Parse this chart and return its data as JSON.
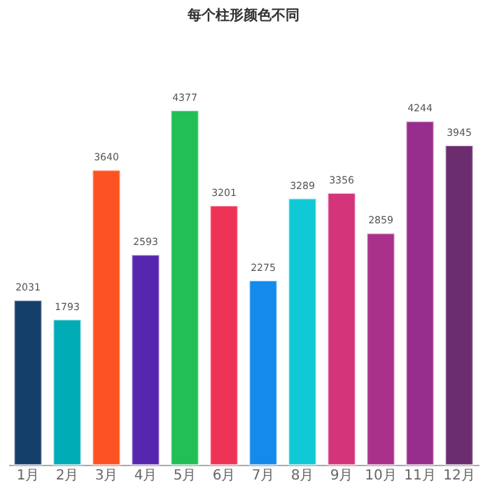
{
  "chart_data": {
    "type": "bar",
    "title": "每个柱形颜色不同",
    "categories": [
      "1月",
      "2月",
      "3月",
      "4月",
      "5月",
      "6月",
      "7月",
      "8月",
      "9月",
      "10月",
      "11月",
      "12月"
    ],
    "values": [
      2031,
      1793,
      3640,
      2593,
      4377,
      3201,
      2275,
      3289,
      3356,
      2859,
      4244,
      3945
    ],
    "colors": [
      "#153f6b",
      "#00acb5",
      "#fd5322",
      "#5726b1",
      "#21bf55",
      "#ef3357",
      "#138aec",
      "#11c9d6",
      "#d43479",
      "#a9318a",
      "#972d8c",
      "#6c2d6e"
    ],
    "tick_labels": "x",
    "data_labels": true
  }
}
